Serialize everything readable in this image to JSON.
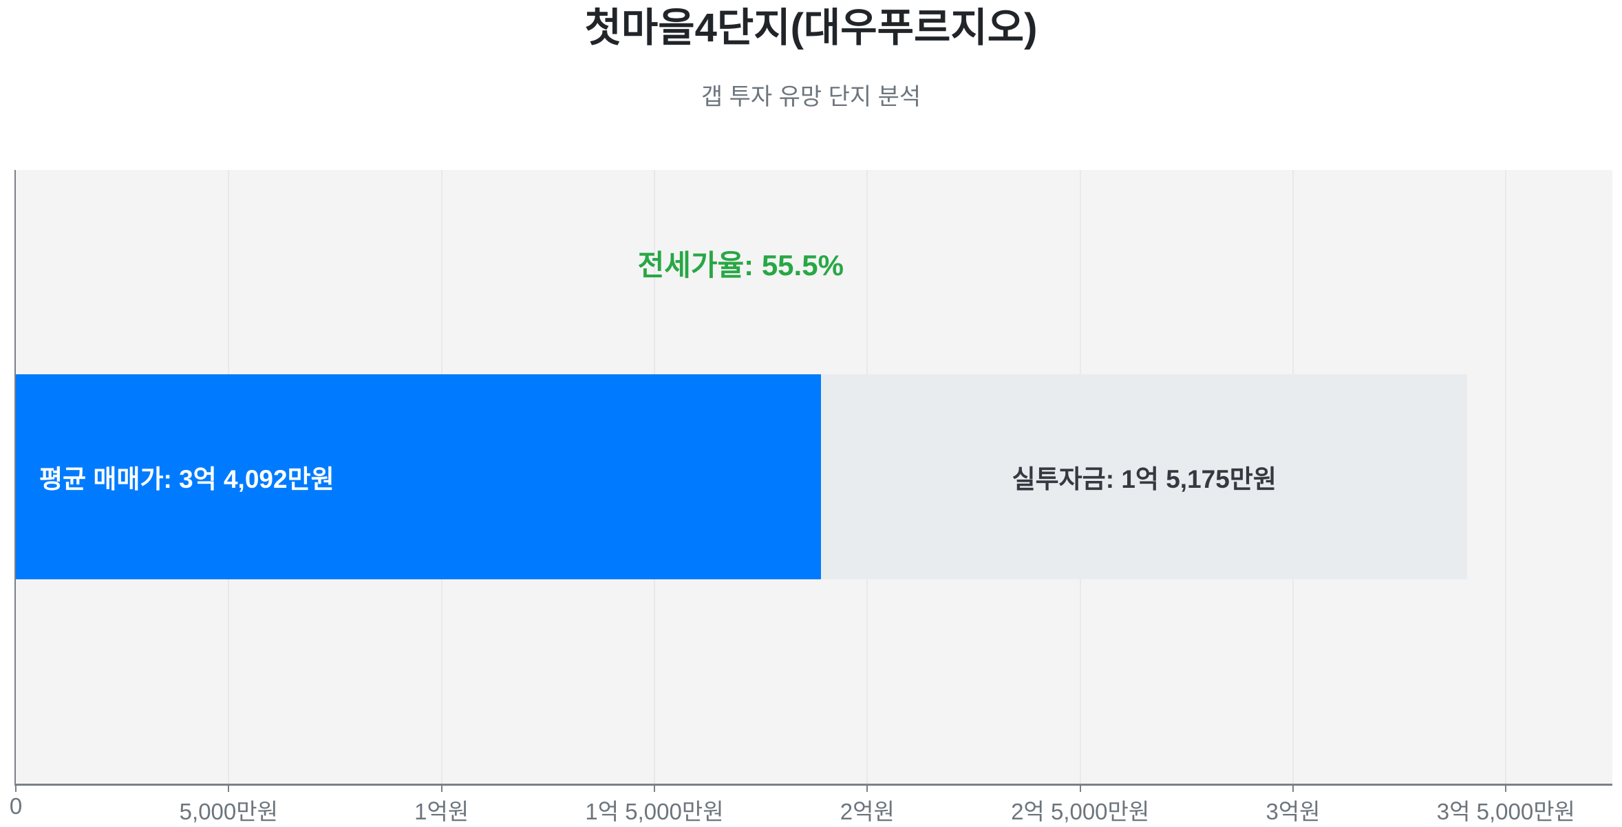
{
  "header": {
    "title": "첫마을4단지(대우푸르지오)",
    "subtitle": "갭 투자 유망 단지 분석"
  },
  "chart_data": {
    "type": "bar",
    "orientation": "horizontal",
    "stacked": true,
    "title": "첫마을4단지(대우푸르지오)",
    "subtitle": "갭 투자 유망 단지 분석",
    "unit": "만원",
    "x_axis": {
      "min": 0,
      "max": 37500,
      "tick_interval": 5000,
      "tick_values": [
        0,
        5000,
        10000,
        15000,
        20000,
        25000,
        30000,
        35000
      ],
      "tick_labels": [
        "0",
        "5,000만원",
        "1억원",
        "1억 5,000만원",
        "2억원",
        "2억 5,000만원",
        "3억원",
        "3억 5,000만원"
      ]
    },
    "segments": [
      {
        "name": "jeonse-portion",
        "label": "평균 매매가: 3억 4,092만원",
        "value": 18917,
        "color": "#007bff",
        "label_color": "#ffffff"
      },
      {
        "name": "net-investment",
        "label": "실투자금: 1억 5,175만원",
        "value": 15175,
        "color": "#e9ecef",
        "label_color": "#343a40"
      }
    ],
    "annotation": {
      "text": "전세가율: 55.5%",
      "color": "#28a745"
    },
    "readings": {
      "avg_sale_price_manwon": 34092,
      "net_investment_manwon": 15175,
      "jeonse_ratio_pct": 55.5
    },
    "grid": true,
    "plot_bg": "#f4f4f5",
    "legend": "none"
  }
}
